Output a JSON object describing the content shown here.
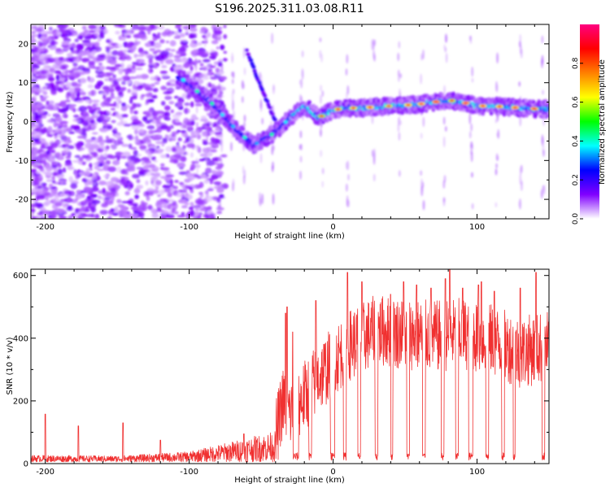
{
  "title": "S196.2025.311.03.08.R11",
  "chart_data": [
    {
      "type": "heatmap",
      "name": "spectrogram",
      "xlabel": "Height of straight line (km)",
      "ylabel": "Frequency (Hz)",
      "xlim": [
        -210,
        150
      ],
      "ylim": [
        -25,
        25
      ],
      "x_ticks": [
        -200,
        -100,
        0,
        100
      ],
      "x_tick_labels": [
        "-200",
        "-100",
        "0",
        "100"
      ],
      "y_ticks": [
        20,
        10,
        0,
        -10,
        -20
      ],
      "y_tick_labels": [
        "20",
        "10",
        "0",
        "-10",
        "-20"
      ],
      "ridge": {
        "x": [
          -105,
          -95,
          -85,
          -75,
          -65,
          -55,
          -45,
          -38,
          -30,
          -20,
          -10,
          0,
          10,
          20,
          30,
          40,
          50,
          60,
          70,
          80,
          90,
          100,
          110,
          120,
          130,
          140,
          150
        ],
        "freq": [
          11,
          8,
          5,
          1,
          -3,
          -6,
          -4,
          -2,
          1,
          4,
          1,
          3,
          3.5,
          3.5,
          3.8,
          4,
          4.2,
          4.5,
          5,
          5.5,
          5,
          4,
          4,
          3.8,
          3.5,
          3.3,
          3.2
        ]
      },
      "colorbar": {
        "label": "Normalized spectral amplitude",
        "range": [
          0,
          1
        ],
        "ticks": [
          0.0,
          0.2,
          0.4,
          0.6,
          0.8
        ],
        "tick_labels": [
          "0.0",
          "0.2",
          "0.4",
          "0.6",
          "0.8"
        ],
        "colors": [
          "#ffffff",
          "#8000ff",
          "#0000ff",
          "#00ffff",
          "#00ff00",
          "#ffff00",
          "#ff8000",
          "#ff0000",
          "#ff0080"
        ]
      }
    },
    {
      "type": "line",
      "name": "snr",
      "xlabel": "Height of straight line (km)",
      "ylabel": "SNR (10 * v/v)",
      "xlim": [
        -210,
        150
      ],
      "ylim": [
        0,
        620
      ],
      "x_ticks": [
        -200,
        -100,
        0,
        100
      ],
      "x_tick_labels": [
        "-200",
        "-100",
        "0",
        "100"
      ],
      "y_ticks": [
        0,
        200,
        400,
        600
      ],
      "y_tick_labels": [
        "0",
        "200",
        "400",
        "600"
      ],
      "color": "#f03030",
      "profile": {
        "x": [
          -210,
          -150,
          -100,
          -80,
          -60,
          -40,
          -35,
          -30,
          -20,
          -10,
          0,
          10,
          30,
          50,
          70,
          90,
          110,
          130,
          150
        ],
        "baseline": [
          20,
          18,
          30,
          50,
          70,
          90,
          200,
          160,
          220,
          280,
          330,
          380,
          430,
          420,
          410,
          420,
          400,
          360,
          380
        ]
      },
      "dropouts": [
        [
          -28,
          -24
        ],
        [
          -17,
          -15
        ],
        [
          -2,
          1
        ],
        [
          7,
          9
        ],
        [
          17,
          19
        ],
        [
          29,
          31
        ],
        [
          40,
          41.5
        ],
        [
          51,
          53
        ],
        [
          62,
          64
        ],
        [
          75,
          77
        ],
        [
          85,
          87
        ],
        [
          94,
          97
        ],
        [
          106,
          108
        ],
        [
          117,
          119
        ],
        [
          125,
          126.5
        ],
        [
          145,
          147
        ]
      ],
      "spikes": [
        [
          -200,
          158
        ],
        [
          -177,
          120
        ],
        [
          -146,
          130
        ],
        [
          -120,
          75
        ],
        [
          -62,
          95
        ],
        [
          -33,
          480
        ],
        [
          -32,
          500
        ],
        [
          -28,
          420
        ],
        [
          -12,
          520
        ],
        [
          10,
          610
        ],
        [
          20,
          580
        ],
        [
          30,
          590
        ],
        [
          40,
          540
        ],
        [
          49,
          580
        ],
        [
          58,
          570
        ],
        [
          68,
          560
        ],
        [
          78,
          590
        ],
        [
          81,
          620
        ],
        [
          90,
          560
        ],
        [
          101,
          570
        ],
        [
          103,
          580
        ],
        [
          112,
          550
        ],
        [
          130,
          560
        ],
        [
          141,
          610
        ],
        [
          146,
          600
        ]
      ]
    }
  ]
}
